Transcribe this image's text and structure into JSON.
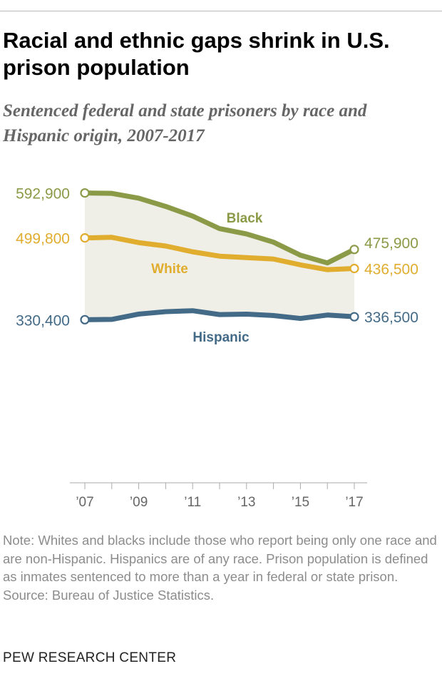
{
  "header": {
    "title": "Racial and ethnic gaps shrink in U.S. prison population",
    "subtitle": "Sentenced federal and state prisoners by race and Hispanic origin, 2007-2017"
  },
  "chart_data": {
    "type": "line",
    "x": [
      2007,
      2008,
      2009,
      2010,
      2011,
      2012,
      2013,
      2014,
      2015,
      2016,
      2017
    ],
    "x_tick_labels": [
      {
        "x": 2007,
        "label": "’07"
      },
      {
        "x": 2009,
        "label": "’09"
      },
      {
        "x": 2011,
        "label": "’11"
      },
      {
        "x": 2013,
        "label": "’13"
      },
      {
        "x": 2015,
        "label": "’15"
      },
      {
        "x": 2017,
        "label": "’17"
      }
    ],
    "xlim": [
      2007,
      2017
    ],
    "ylim": [
      0,
      610000
    ],
    "grid": false,
    "gap_shading": {
      "between": [
        "Black",
        "Hispanic"
      ],
      "color": "#efeee7"
    },
    "series": [
      {
        "name": "Black",
        "color": "#8b9a46",
        "values": [
          592900,
          592000,
          582000,
          565000,
          545000,
          519000,
          508000,
          491000,
          464000,
          448000,
          475900
        ]
      },
      {
        "name": "White",
        "color": "#e0ad2f",
        "values": [
          499800,
          501000,
          490000,
          483000,
          471000,
          462000,
          459000,
          456000,
          444000,
          434000,
          436500
        ]
      },
      {
        "name": "Hispanic",
        "color": "#436a87",
        "values": [
          330400,
          331000,
          342000,
          347000,
          349000,
          341000,
          342000,
          339000,
          333000,
          340000,
          336500
        ]
      }
    ],
    "start_labels": [
      "592,900",
      "499,800",
      "330,400"
    ],
    "end_labels": [
      "475,900",
      "436,500",
      "336,500"
    ]
  },
  "notes": [
    "Note: Whites and blacks include those who report being only one race and are non-Hispanic. Hispanics are of any race. Prison population is defined as inmates sentenced to more than a year in federal or state prison.",
    "Source: Bureau of Justice Statistics."
  ],
  "brand": "PEW RESEARCH CENTER"
}
